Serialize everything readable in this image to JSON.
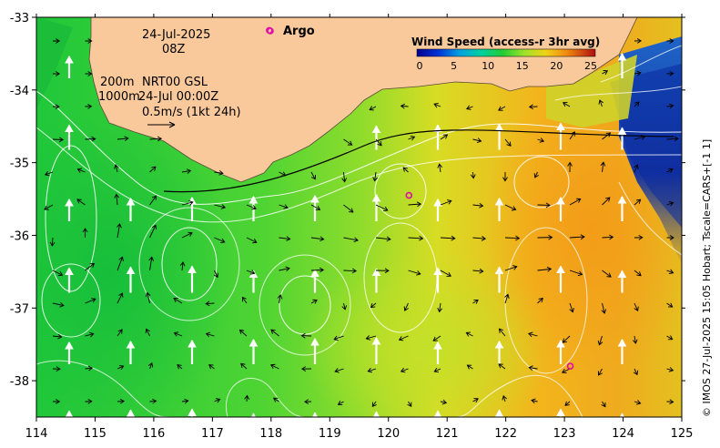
{
  "map": {
    "date": "24-Jul-2025",
    "hour": "08Z",
    "depth_line_1": "200m",
    "depth_line_2": "1000m",
    "source_label": "NRT00 GSL",
    "source_time": "24-Jul 00:00Z",
    "scale_label": "0.5m/s (1kt 24h)",
    "argo_label": "Argo",
    "credit": "© IMOS 27-Jul-2025 15:05 Hobart; Tscale=CARS+[-1 1]",
    "x_ticks": [
      "114",
      "115",
      "116",
      "117",
      "118",
      "119",
      "120",
      "121",
      "122",
      "123",
      "124",
      "125"
    ],
    "y_ticks": [
      "-33",
      "-34",
      "-35",
      "-36",
      "-37",
      "-38"
    ],
    "extent": {
      "lon_min": 114,
      "lon_max": 125,
      "lat_max": -33,
      "lat_min": -38.5
    },
    "argo_floats": [
      {
        "lon": 120.35,
        "lat": -35.45
      },
      {
        "lon": 123.1,
        "lat": -37.8
      },
      {
        "lon": 117.97,
        "lat": -33.18
      }
    ]
  },
  "legend": {
    "title": "Wind Speed (access-r 3hr avg)",
    "ticks": [
      "0",
      "5",
      "10",
      "15",
      "20",
      "25"
    ],
    "range": [
      0,
      25
    ]
  },
  "colors": {
    "land": "#f9c99b",
    "ocean_green": "#3fd23c",
    "ocean_yellow": "#b8e62a",
    "ocean_orange": "#f0a31a",
    "ocean_blue": "#1a5ad8",
    "argo": "#e00aa8"
  }
}
